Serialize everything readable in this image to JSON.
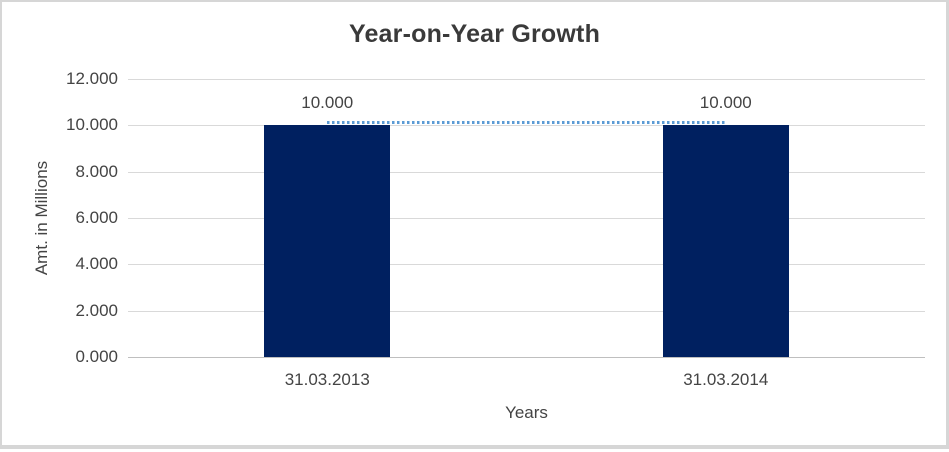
{
  "chart_data": {
    "type": "bar",
    "title": "Year-on-Year Growth",
    "xlabel": "Years",
    "ylabel": "Amt. in Millions",
    "categories": [
      "31.03.2013",
      "31.03.2014"
    ],
    "series": [
      {
        "name": "Amt. in Millions",
        "values": [
          10.0,
          10.0
        ]
      }
    ],
    "data_labels": [
      "10.000",
      "10.000"
    ],
    "y_ticks": [
      {
        "label": "12.000",
        "value": 12
      },
      {
        "label": "10.000",
        "value": 10
      },
      {
        "label": "8.000",
        "value": 8
      },
      {
        "label": "6.000",
        "value": 6
      },
      {
        "label": "4.000",
        "value": 4
      },
      {
        "label": "2.000",
        "value": 2
      },
      {
        "label": "0.000",
        "value": 0
      }
    ],
    "ylim": [
      0,
      12
    ],
    "grid": true,
    "legend_position": "none",
    "connector": {
      "style": "dotted",
      "from": "31.03.2013",
      "to": "31.03.2014",
      "at_value": 10
    },
    "colors": {
      "bar": "#002060",
      "connector_line": "#5b9bd5",
      "gridline": "#d9d9d9",
      "axis_line": "#bfbfbf",
      "label_text": "#444444",
      "title_text": "#3a3a3a",
      "frame_border": "#d6d6d6"
    }
  }
}
